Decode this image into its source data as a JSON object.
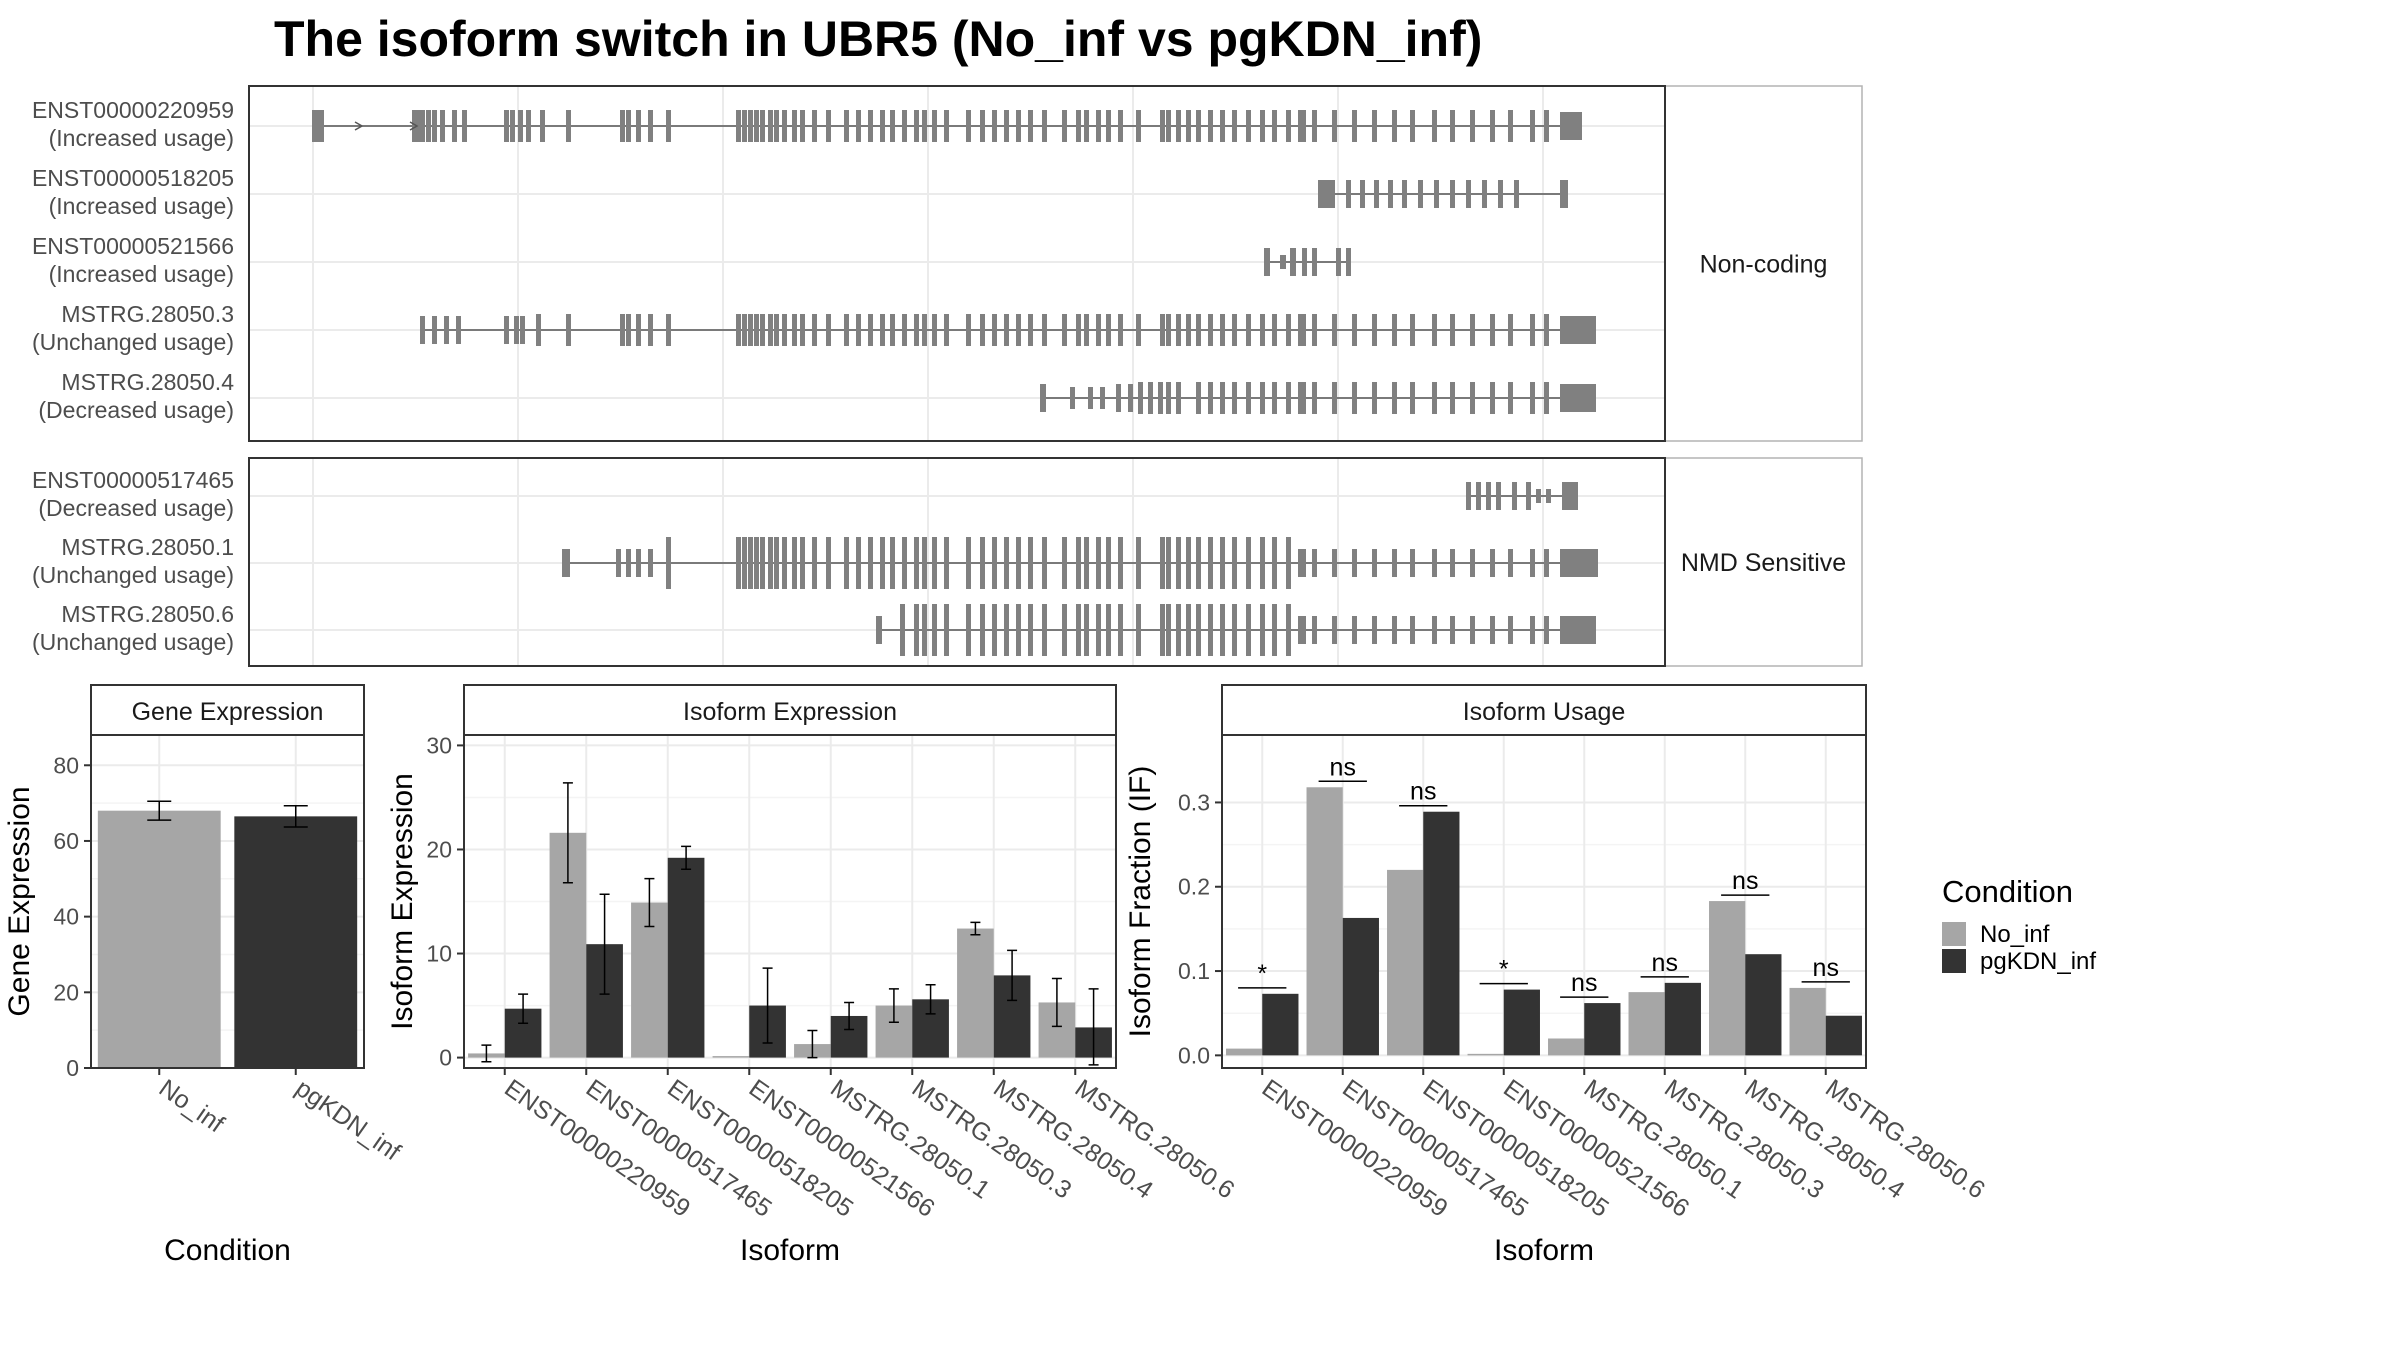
{
  "title": "The isoform switch in UBR5 (No_inf vs pgKDN_inf)",
  "colors": {
    "no_inf": "#a6a6a6",
    "pgkdn_inf": "#333333",
    "exon": "#808080",
    "grid": "#ebebeb",
    "frame": "#333333",
    "strip_border": "#b3b3b3"
  },
  "structure": {
    "groups": [
      {
        "label": "Non-coding",
        "isoforms": [
          {
            "name": "ENST00000220959",
            "usage": "(Increased usage)"
          },
          {
            "name": "ENST00000518205",
            "usage": "(Increased usage)"
          },
          {
            "name": "ENST00000521566",
            "usage": "(Increased usage)"
          },
          {
            "name": "MSTRG.28050.3",
            "usage": "(Unchanged usage)"
          },
          {
            "name": "MSTRG.28050.4",
            "usage": "(Decreased usage)"
          }
        ]
      },
      {
        "label": "NMD Sensitive",
        "isoforms": [
          {
            "name": "ENST00000517465",
            "usage": "(Decreased usage)"
          },
          {
            "name": "MSTRG.28050.1",
            "usage": "(Unchanged usage)"
          },
          {
            "name": "MSTRG.28050.6",
            "usage": "(Unchanged usage)"
          }
        ]
      }
    ]
  },
  "legend": {
    "title": "Condition",
    "items": [
      "No_inf",
      "pgKDN_inf"
    ]
  },
  "chart_data": [
    {
      "type": "bar",
      "title": "Gene Expression",
      "xlabel": "Condition",
      "ylabel": "Gene Expression",
      "ylim": [
        0,
        88
      ],
      "yticks": [
        0,
        20,
        40,
        60,
        80
      ],
      "categories": [
        "No_inf",
        "pgKDN_inf"
      ],
      "values": [
        68.0,
        66.5
      ],
      "errors": [
        2.5,
        2.8
      ]
    },
    {
      "type": "bar",
      "title": "Isoform Expression",
      "xlabel": "Isoform",
      "ylabel": "Isoform Expression",
      "ylim": [
        -1,
        31
      ],
      "yticks": [
        0,
        10,
        20,
        30
      ],
      "categories": [
        "ENST00000220959",
        "ENST00000517465",
        "ENST00000518205",
        "ENST00000521566",
        "MSTRG.28050.1",
        "MSTRG.28050.3",
        "MSTRG.28050.4",
        "MSTRG.28050.6"
      ],
      "series": [
        {
          "name": "No_inf",
          "values": [
            0.4,
            21.6,
            14.9,
            0.0,
            1.3,
            5.0,
            12.4,
            5.3
          ],
          "errors": [
            0.8,
            4.8,
            2.3,
            0.0,
            1.3,
            1.6,
            0.6,
            2.3
          ]
        },
        {
          "name": "pgKDN_inf",
          "values": [
            4.7,
            10.9,
            19.2,
            5.0,
            4.0,
            5.6,
            7.9,
            2.9
          ],
          "errors": [
            1.4,
            4.8,
            1.1,
            3.6,
            1.3,
            1.4,
            2.4,
            3.7
          ]
        }
      ]
    },
    {
      "type": "bar",
      "title": "Isoform Usage",
      "xlabel": "Isoform",
      "ylabel": "Isoform Fraction (IF)",
      "ylim": [
        -0.015,
        0.38
      ],
      "yticks": [
        0.0,
        0.1,
        0.2,
        0.3
      ],
      "ytick_labels": [
        "0.0",
        "0.1",
        "0.2",
        "0.3"
      ],
      "categories": [
        "ENST00000220959",
        "ENST00000517465",
        "ENST00000518205",
        "ENST00000521566",
        "MSTRG.28050.1",
        "MSTRG.28050.3",
        "MSTRG.28050.4",
        "MSTRG.28050.6"
      ],
      "series": [
        {
          "name": "No_inf",
          "values": [
            0.008,
            0.318,
            0.22,
            0.0,
            0.02,
            0.075,
            0.183,
            0.08
          ]
        },
        {
          "name": "pgKDN_inf",
          "values": [
            0.073,
            0.163,
            0.289,
            0.078,
            0.062,
            0.086,
            0.12,
            0.047
          ]
        }
      ],
      "significance": [
        "*",
        "ns",
        "ns",
        "*",
        "ns",
        "ns",
        "ns",
        "ns"
      ]
    }
  ]
}
